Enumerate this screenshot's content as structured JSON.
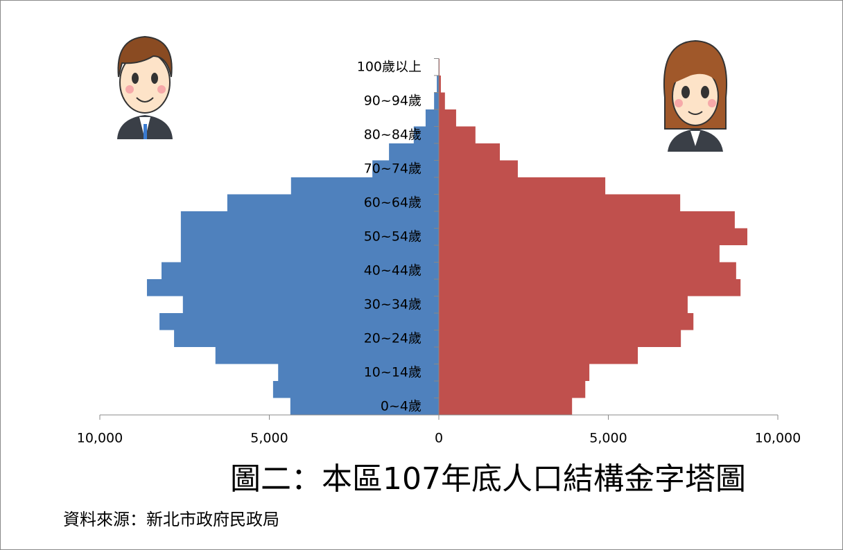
{
  "chart_data": {
    "type": "pyramid",
    "title": "圖二：本區107年底人口結構金字塔圖",
    "source": "資料來源：新北市政府民政局",
    "categories": [
      "0~4歲",
      null,
      "10~14歲",
      null,
      "20~24歲",
      null,
      "30~34歲",
      null,
      "40~44歲",
      null,
      "50~54歲",
      null,
      "60~64歲",
      null,
      "70~74歲",
      null,
      "80~84歲",
      null,
      "90~94歲",
      null,
      "100歲以上"
    ],
    "series": [
      {
        "color": "#4f81bd",
        "side": "left",
        "values": [
          4380,
          4890,
          4740,
          6590,
          7810,
          8240,
          7550,
          8610,
          8180,
          7610,
          7610,
          7610,
          6240,
          4360,
          1960,
          1470,
          740,
          390,
          140,
          60,
          10
        ]
      },
      {
        "color": "#c0504d",
        "side": "right",
        "values": [
          3930,
          4320,
          4440,
          5870,
          7140,
          7510,
          7340,
          8900,
          8770,
          8280,
          9100,
          8730,
          7120,
          4910,
          2330,
          1800,
          1080,
          510,
          180,
          60,
          20
        ]
      }
    ],
    "xlim": [
      -10000,
      10000
    ],
    "xticks": [
      {
        "value": -10000,
        "label": "10,000"
      },
      {
        "value": -5000,
        "label": "5,000"
      },
      0,
      {
        "value": 5000,
        "label": "5,000"
      },
      {
        "value": 10000,
        "label": "10,000"
      }
    ]
  }
}
